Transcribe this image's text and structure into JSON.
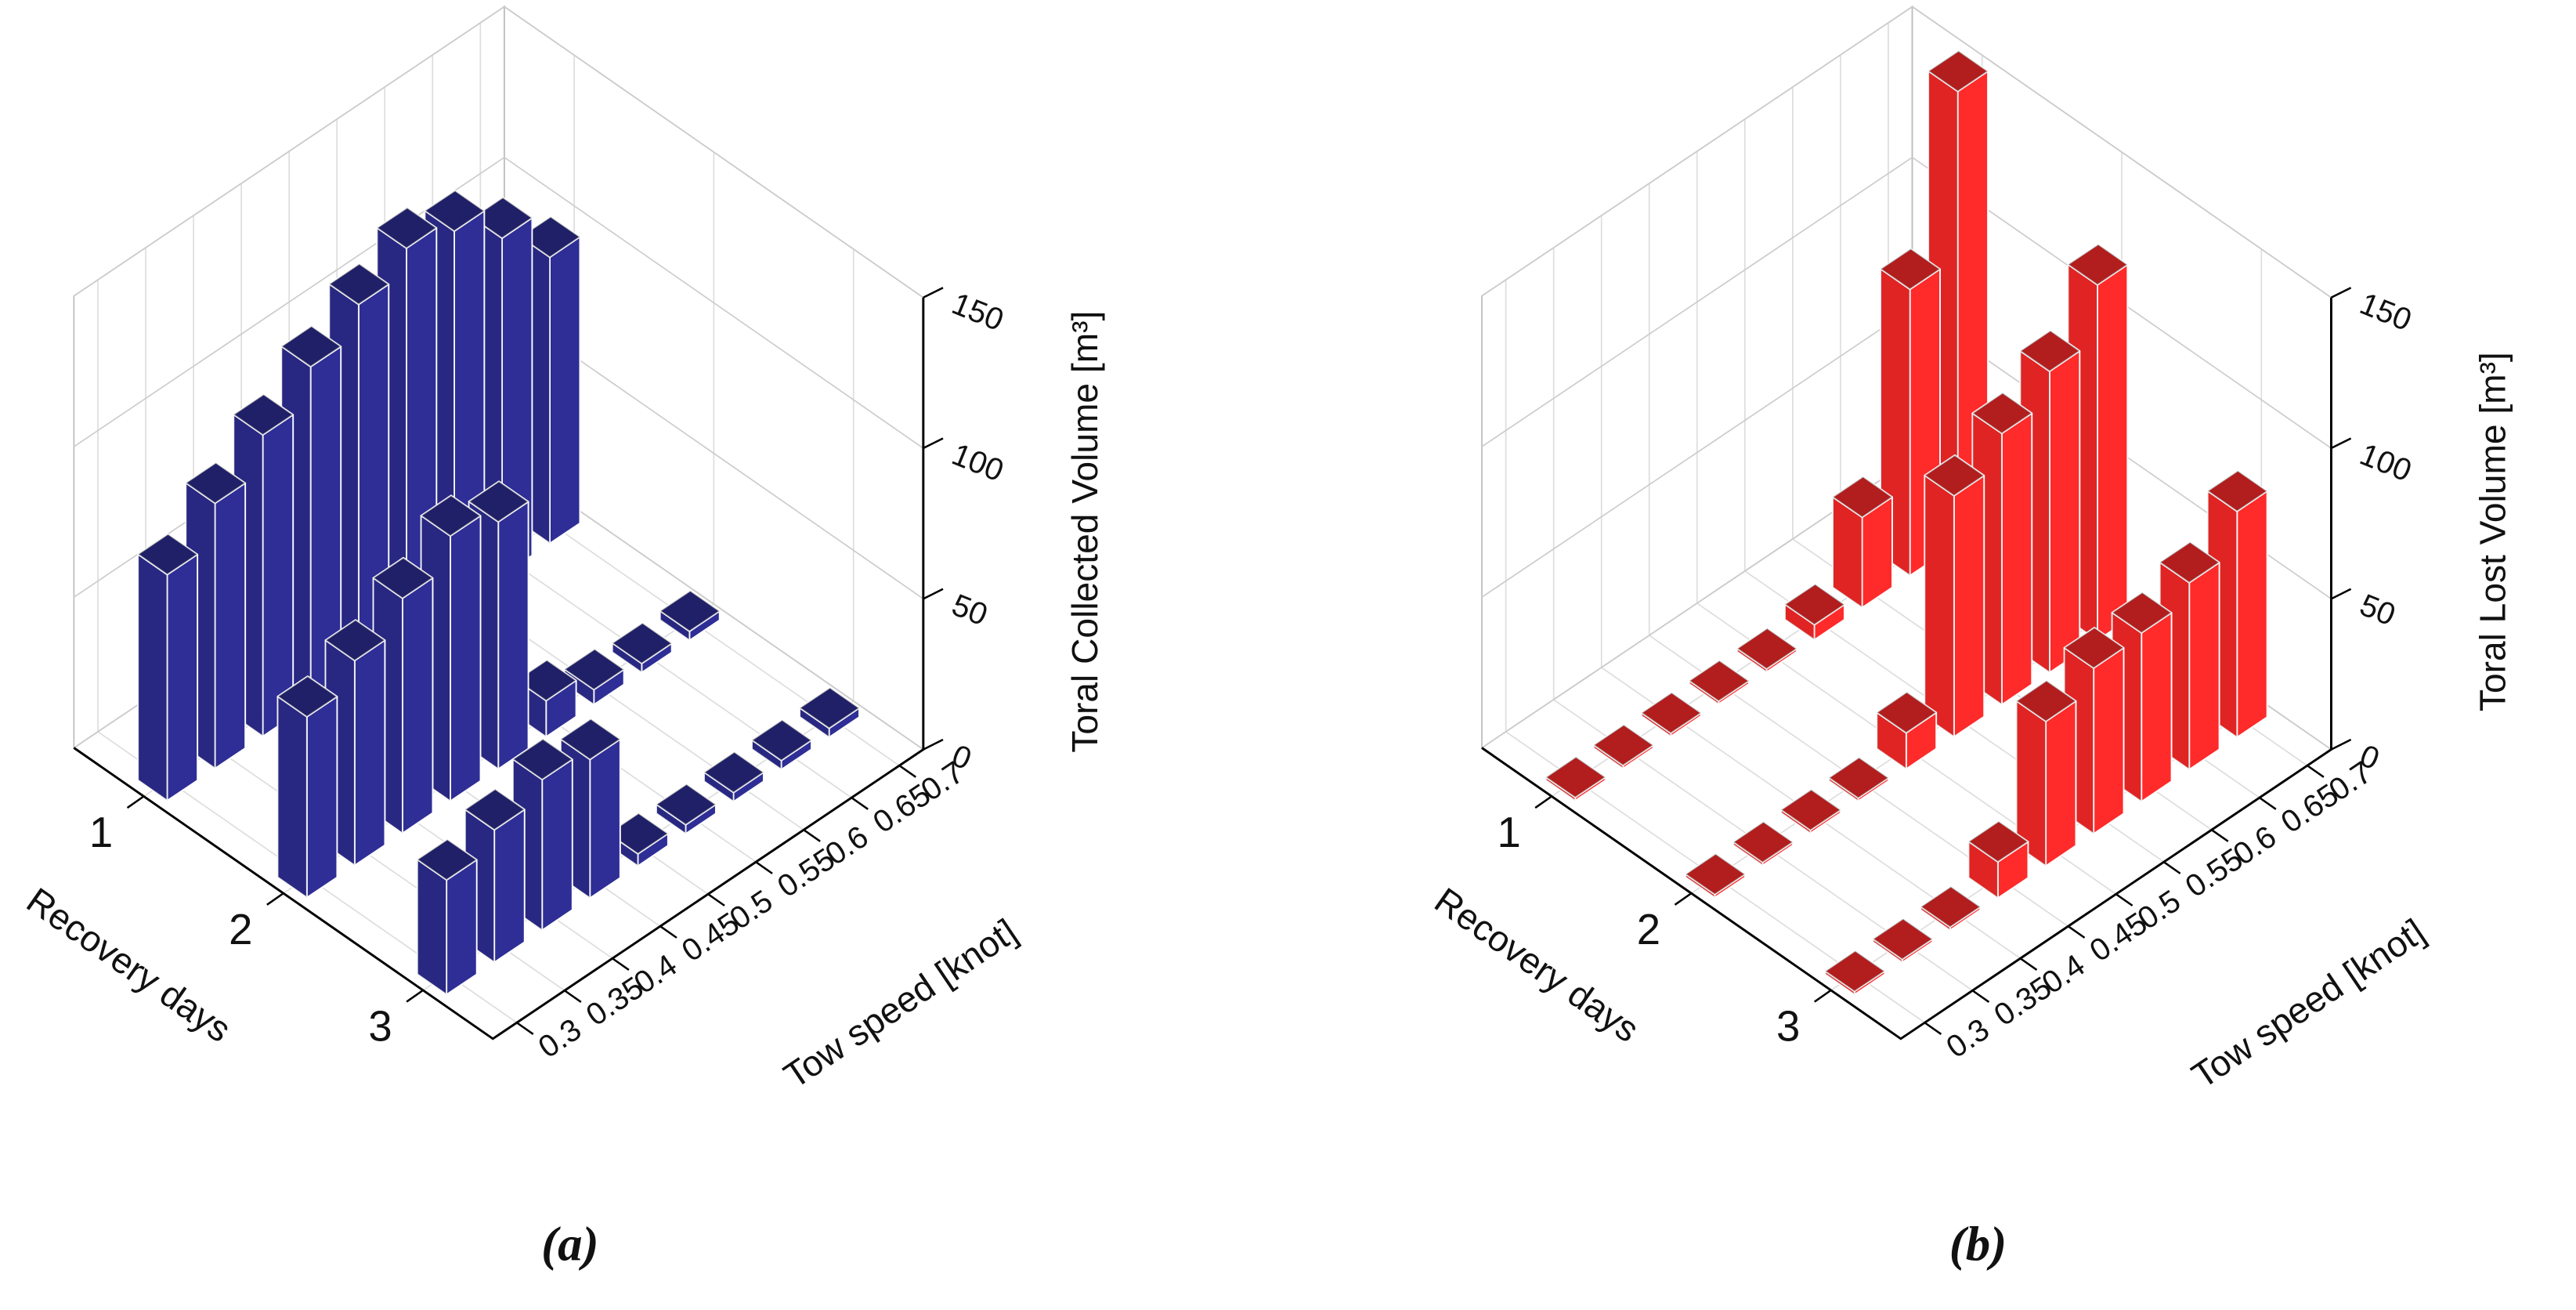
{
  "chart_data": [
    {
      "type": "bar3d",
      "panel_label": "(a)",
      "xlabel": "Recovery days",
      "ylabel": "Tow speed [knot]",
      "zlabel": "Toral Collected Volume [m³]",
      "x_categories": [
        1,
        2,
        3
      ],
      "y_categories": [
        0.3,
        0.35,
        0.4,
        0.45,
        0.5,
        0.55,
        0.6,
        0.65,
        0.7
      ],
      "values": [
        [
          75,
          88,
          100,
          112,
          122,
          130,
          125,
          112,
          95
        ],
        [
          60,
          68,
          78,
          88,
          82,
          12,
          5,
          3,
          3
        ],
        [
          38,
          44,
          50,
          46,
          4,
          3,
          3,
          3,
          3
        ]
      ],
      "zlim": [
        0,
        150
      ],
      "zticks": [
        0,
        50,
        100,
        150
      ],
      "color": "#2e2e96",
      "grid": true
    },
    {
      "type": "bar3d",
      "panel_label": "(b)",
      "xlabel": "Recovery days",
      "ylabel": "Tow speed [knot]",
      "zlabel": "Toral Lost Volume [m³]",
      "x_categories": [
        1,
        2,
        3
      ],
      "y_categories": [
        0.3,
        0.35,
        0.4,
        0.45,
        0.5,
        0.55,
        0.6,
        0.65,
        0.7
      ],
      "values": [
        [
          1,
          1,
          1,
          1,
          1,
          5,
          30,
          95,
          150
        ],
        [
          1,
          1,
          1,
          1,
          12,
          80,
          90,
          100,
          118
        ],
        [
          1,
          1,
          1,
          12,
          48,
          55,
          56,
          62,
          75
        ]
      ],
      "zlim": [
        0,
        150
      ],
      "zticks": [
        0,
        50,
        100,
        150
      ],
      "color": "#ff2a2a",
      "grid": true
    }
  ]
}
